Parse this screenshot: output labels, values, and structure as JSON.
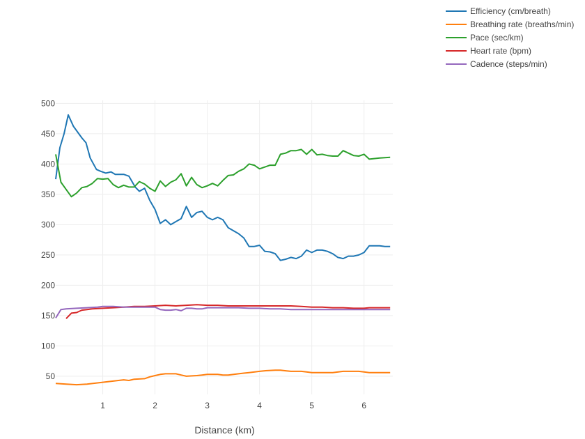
{
  "chart_data": {
    "type": "line",
    "xlabel": "Distance (km)",
    "ylabel": "",
    "xlim": [
      0.1,
      6.55
    ],
    "ylim": [
      20,
      505
    ],
    "xticks": [
      "1",
      "2",
      "3",
      "4",
      "5",
      "6"
    ],
    "yticks": [
      "50",
      "100",
      "150",
      "200",
      "250",
      "300",
      "350",
      "400",
      "450",
      "500"
    ],
    "grid": true,
    "legend_position": "top-right",
    "series": [
      {
        "name": "Efficiency (cm/breath)",
        "color": "#1f77b4",
        "x": [
          0.1,
          0.18,
          0.26,
          0.34,
          0.44,
          0.6,
          0.68,
          0.76,
          0.88,
          0.96,
          1.06,
          1.16,
          1.24,
          1.32,
          1.4,
          1.5,
          1.62,
          1.7,
          1.8,
          1.9,
          2.0,
          2.1,
          2.2,
          2.3,
          2.4,
          2.5,
          2.6,
          2.7,
          2.8,
          2.9,
          3.0,
          3.1,
          3.2,
          3.3,
          3.4,
          3.6,
          3.7,
          3.8,
          3.9,
          4.0,
          4.1,
          4.2,
          4.3,
          4.4,
          4.5,
          4.6,
          4.7,
          4.8,
          4.9,
          5.0,
          5.1,
          5.2,
          5.3,
          5.4,
          5.5,
          5.6,
          5.7,
          5.8,
          5.9,
          6.0,
          6.1,
          6.2,
          6.3,
          6.4,
          6.5
        ],
        "y": [
          375,
          427,
          450,
          481,
          462,
          443,
          435,
          410,
          391,
          388,
          385,
          387,
          383,
          383,
          383,
          380,
          362,
          355,
          360,
          340,
          325,
          302,
          308,
          300,
          305,
          310,
          330,
          312,
          320,
          322,
          312,
          308,
          312,
          308,
          295,
          285,
          278,
          264,
          264,
          266,
          256,
          255,
          252,
          241,
          243,
          246,
          244,
          248,
          258,
          254,
          258,
          258,
          256,
          252,
          246,
          244,
          248,
          248,
          250,
          254,
          265,
          265,
          265,
          264,
          264
        ]
      },
      {
        "name": "Breathing rate (breaths/min)",
        "color": "#ff7f0e",
        "x": [
          0.1,
          0.3,
          0.5,
          0.7,
          0.9,
          1.0,
          1.1,
          1.2,
          1.3,
          1.4,
          1.5,
          1.6,
          1.8,
          1.9,
          2.0,
          2.1,
          2.2,
          2.4,
          2.5,
          2.6,
          2.8,
          2.9,
          3.0,
          3.2,
          3.3,
          3.4,
          3.6,
          3.7,
          3.8,
          4.0,
          4.1,
          4.3,
          4.4,
          4.5,
          4.6,
          4.8,
          4.9,
          5.0,
          5.2,
          5.4,
          5.6,
          5.8,
          5.9,
          6.0,
          6.1,
          6.3,
          6.5
        ],
        "y": [
          38,
          37,
          36,
          37,
          39,
          40,
          41,
          42,
          43,
          44,
          43,
          45,
          46,
          49,
          51,
          53,
          54,
          54,
          52,
          50,
          51,
          52,
          53,
          53,
          52,
          52,
          54,
          55,
          56,
          58,
          59,
          60,
          60,
          59,
          58,
          58,
          57,
          56,
          56,
          56,
          58,
          58,
          58,
          57,
          56,
          56,
          56
        ],
        "y_note": ""
      },
      {
        "name": "Pace (sec/km)",
        "color": "#2ca02c",
        "x": [
          0.1,
          0.2,
          0.3,
          0.4,
          0.5,
          0.6,
          0.7,
          0.8,
          0.9,
          1.0,
          1.1,
          1.2,
          1.3,
          1.4,
          1.5,
          1.6,
          1.7,
          1.8,
          1.9,
          2.0,
          2.1,
          2.2,
          2.3,
          2.4,
          2.5,
          2.6,
          2.7,
          2.8,
          2.9,
          3.0,
          3.1,
          3.2,
          3.3,
          3.4,
          3.5,
          3.6,
          3.7,
          3.8,
          3.9,
          4.0,
          4.1,
          4.2,
          4.3,
          4.4,
          4.5,
          4.6,
          4.7,
          4.8,
          4.9,
          5.0,
          5.1,
          5.2,
          5.3,
          5.4,
          5.5,
          5.6,
          5.7,
          5.8,
          5.9,
          6.0,
          6.1,
          6.3,
          6.5
        ],
        "y": [
          416,
          370,
          358,
          346,
          352,
          361,
          363,
          368,
          376,
          375,
          376,
          366,
          361,
          365,
          362,
          362,
          371,
          367,
          360,
          355,
          372,
          363,
          370,
          374,
          384,
          364,
          378,
          366,
          361,
          364,
          368,
          364,
          373,
          381,
          382,
          388,
          392,
          400,
          398,
          392,
          395,
          398,
          398,
          416,
          418,
          422,
          422,
          424,
          416,
          424,
          415,
          416,
          414,
          413,
          413,
          422,
          418,
          414,
          413,
          416,
          408,
          410,
          411
        ]
      },
      {
        "name": "Heart rate (bpm)",
        "color": "#d62728",
        "x": [
          0.3,
          0.4,
          0.5,
          0.6,
          0.7,
          0.8,
          1.0,
          1.2,
          1.4,
          1.6,
          1.8,
          2.0,
          2.2,
          2.4,
          2.6,
          2.8,
          3.0,
          3.2,
          3.4,
          3.6,
          3.8,
          4.0,
          4.2,
          4.4,
          4.6,
          4.8,
          5.0,
          5.2,
          5.4,
          5.6,
          5.8,
          6.0,
          6.1,
          6.3,
          6.5
        ],
        "y": [
          145,
          154,
          155,
          159,
          160,
          161,
          162,
          163,
          164,
          165,
          165,
          166,
          167,
          166,
          167,
          168,
          167,
          167,
          166,
          166,
          166,
          166,
          166,
          166,
          166,
          165,
          164,
          164,
          163,
          163,
          162,
          162,
          163,
          163,
          163
        ]
      },
      {
        "name": "Cadence (steps/min)",
        "color": "#9467bd",
        "x": [
          0.1,
          0.2,
          0.3,
          0.5,
          0.7,
          0.9,
          1.0,
          1.2,
          1.4,
          1.6,
          1.8,
          2.0,
          2.1,
          2.2,
          2.3,
          2.4,
          2.5,
          2.6,
          2.7,
          2.8,
          2.9,
          3.0,
          3.2,
          3.4,
          3.6,
          3.8,
          4.0,
          4.2,
          4.4,
          4.6,
          4.8,
          5.0,
          5.2,
          5.4,
          5.6,
          5.8,
          6.0,
          6.2,
          6.4,
          6.5
        ],
        "y": [
          146,
          160,
          161,
          162,
          163,
          164,
          165,
          165,
          164,
          164,
          164,
          164,
          160,
          159,
          159,
          160,
          158,
          162,
          162,
          161,
          161,
          163,
          163,
          163,
          163,
          162,
          162,
          161,
          161,
          160,
          160,
          160,
          160,
          160,
          160,
          160,
          160,
          160,
          160,
          160
        ]
      }
    ]
  }
}
